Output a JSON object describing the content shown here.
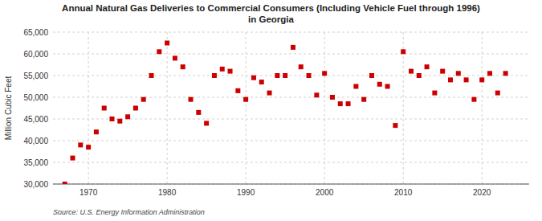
{
  "chart_data": {
    "type": "scatter",
    "title": "Annual Natural Gas Deliveries to Commercial Consumers (Including Vehicle Fuel through 1996)\nin Georgia",
    "y_label": "Million Cubic Feet",
    "annotations": [
      "Source: U.S. Energy Information Administration"
    ],
    "color": "#cc0000",
    "marker": "square",
    "grid": true,
    "xlim": [
      1965.5,
      2026
    ],
    "xticks": [
      1970,
      1980,
      1990,
      2000,
      2010,
      2020
    ],
    "ylim": [
      30000,
      65000
    ],
    "yticks": [
      {
        "value": 30000,
        "label": "30,000"
      },
      {
        "value": 35000,
        "label": "35,000"
      },
      {
        "value": 40000,
        "label": "40,000"
      },
      {
        "value": 45000,
        "label": "45,000"
      },
      {
        "value": 50000,
        "label": "50,000"
      },
      {
        "value": 55000,
        "label": "55,000"
      },
      {
        "value": 60000,
        "label": "60,000"
      },
      {
        "value": 65000,
        "label": "65,000"
      }
    ],
    "x": [
      1967,
      1968,
      1969,
      1970,
      1971,
      1972,
      1973,
      1974,
      1975,
      1976,
      1977,
      1978,
      1979,
      1980,
      1981,
      1982,
      1983,
      1984,
      1985,
      1986,
      1987,
      1988,
      1989,
      1990,
      1991,
      1992,
      1993,
      1994,
      1995,
      1996,
      1997,
      1998,
      1999,
      2000,
      2001,
      2002,
      2003,
      2004,
      2005,
      2006,
      2007,
      2008,
      2009,
      2010,
      2011,
      2012,
      2013,
      2014,
      2015,
      2016,
      2017,
      2018,
      2019,
      2020,
      2021,
      2022,
      2023
    ],
    "values": [
      30000,
      36000,
      39000,
      38500,
      42000,
      47500,
      45000,
      44500,
      45500,
      47500,
      49500,
      55000,
      60500,
      62500,
      59000,
      57000,
      49500,
      46500,
      44000,
      55000,
      56500,
      56000,
      51500,
      49500,
      54500,
      53500,
      51000,
      55000,
      55000,
      61500,
      57000,
      55000,
      50500,
      55500,
      50000,
      48500,
      48500,
      52500,
      49500,
      55000,
      53000,
      52500,
      43500,
      60500,
      56000,
      55000,
      57000,
      51000,
      56000,
      54000,
      55500,
      54000,
      49500,
      54000,
      55500,
      51000,
      55500
    ]
  }
}
